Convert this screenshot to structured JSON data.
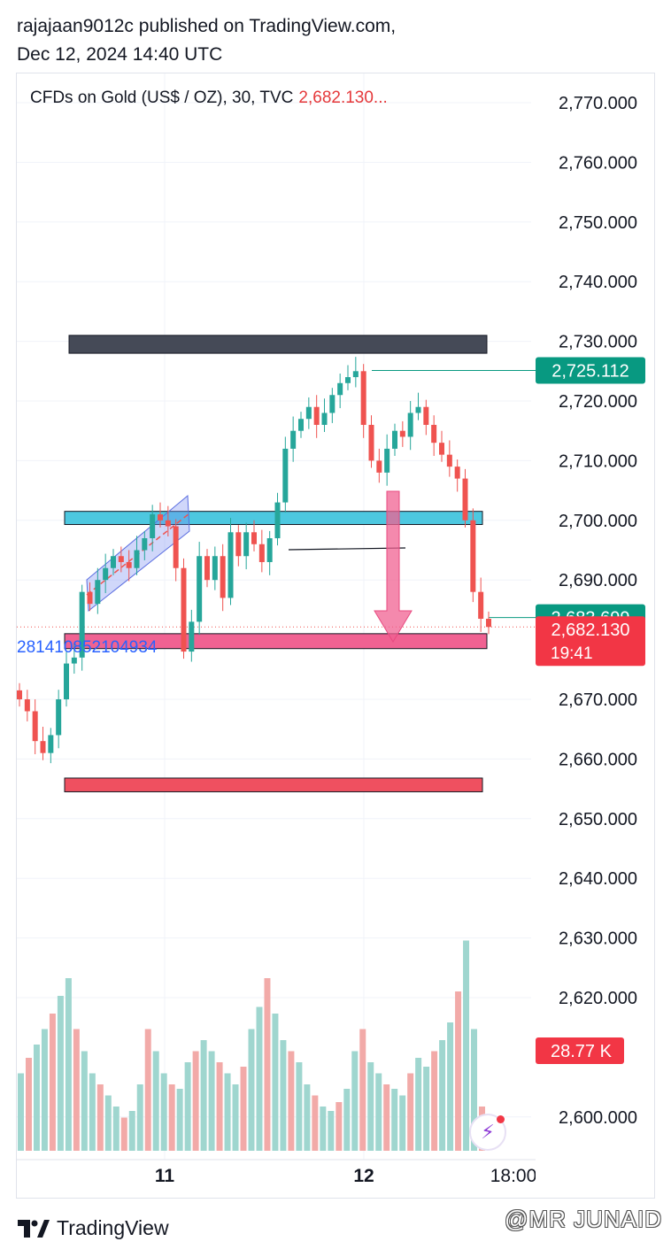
{
  "header": {
    "publisher": "rajajaan9012c published on TradingView.com,",
    "timestamp": "Dec 12, 2024 14:40 UTC"
  },
  "legend": {
    "symbol": "CFDs on Gold (US$ / OZ), 30, TVC",
    "price": "2,682.130..."
  },
  "footer": {
    "brand": "TradingView",
    "watermark": "@MR JUNAID"
  },
  "colors": {
    "up": "#26a69a",
    "down": "#ef5350",
    "accent_red": "#f23645",
    "accent_green": "#089981"
  },
  "chart_data": {
    "type": "candlestick",
    "title": "CFDs on Gold (US$ / OZ), 30, TVC",
    "ylim": [
      2594,
      2776
    ],
    "y_ticks": [
      "2,770.000",
      "2,760.000",
      "2,750.000",
      "2,740.000",
      "2,730.000",
      "2,720.000",
      "2,710.000",
      "2,700.000",
      "2,690.000",
      "2,670.000",
      "2,660.000",
      "2,650.000",
      "2,640.000",
      "2,630.000",
      "2,620.000",
      "2,600.000"
    ],
    "y_tick_values": [
      2770,
      2760,
      2750,
      2740,
      2730,
      2720,
      2710,
      2700,
      2690,
      2670,
      2660,
      2650,
      2640,
      2630,
      2620,
      2600
    ],
    "x_ticks": [
      "11",
      "12",
      "18:00"
    ],
    "last_price_label": "2,682.130",
    "countdown": "19:41",
    "high_label": "2,725.112",
    "high_value": 2725.112,
    "ref_label": "2,683.699",
    "ref_value": 2683.699,
    "volume_label": "28.77 K",
    "note_text": "28141085210493 4",
    "close_path": [
      2670,
      2668,
      2663,
      2661,
      2664,
      2670,
      2676,
      2677,
      2688,
      2686,
      2690,
      2692,
      2694,
      2693,
      2692,
      2695,
      2697,
      2701,
      2700,
      2699,
      2692,
      2678,
      2683,
      2694,
      2690,
      2694,
      2687,
      2698,
      2694,
      2698,
      2696,
      2693,
      2697,
      2703,
      2712,
      2715,
      2717,
      2719,
      2716,
      2718,
      2721,
      2723,
      2724,
      2725,
      2716,
      2710,
      2708,
      2712,
      2715,
      2714,
      2718,
      2719,
      2716,
      2713,
      2711,
      2709,
      2707,
      2700,
      2688,
      2683.5,
      2682.13
    ],
    "volume_profile": [
      0.35,
      0.42,
      0.48,
      0.55,
      0.62,
      0.7,
      0.78,
      0.55,
      0.45,
      0.35,
      0.3,
      0.25,
      0.2,
      0.15,
      0.18,
      0.3,
      0.55,
      0.45,
      0.35,
      0.3,
      0.28,
      0.4,
      0.45,
      0.5,
      0.45,
      0.4,
      0.35,
      0.3,
      0.38,
      0.55,
      0.65,
      0.78,
      0.62,
      0.5,
      0.45,
      0.4,
      0.3,
      0.25,
      0.2,
      0.18,
      0.22,
      0.28,
      0.45,
      0.55,
      0.4,
      0.35,
      0.3,
      0.28,
      0.25,
      0.35,
      0.42,
      0.38,
      0.45,
      0.5,
      0.58,
      0.72,
      0.95,
      0.55,
      0.2
    ],
    "zones": [
      {
        "name": "dark-resistance-zone",
        "from": 2728,
        "to": 2731,
        "color": "#454a57"
      },
      {
        "name": "cyan-zone",
        "from": 2699.3,
        "to": 2701.5,
        "color": "#4dc8e0"
      },
      {
        "name": "pink-target-zone",
        "from": 2678.5,
        "to": 2681,
        "color": "#f06292"
      },
      {
        "name": "red-support-zone",
        "from": 2654.5,
        "to": 2656.8,
        "color": "#ef5060"
      }
    ]
  }
}
